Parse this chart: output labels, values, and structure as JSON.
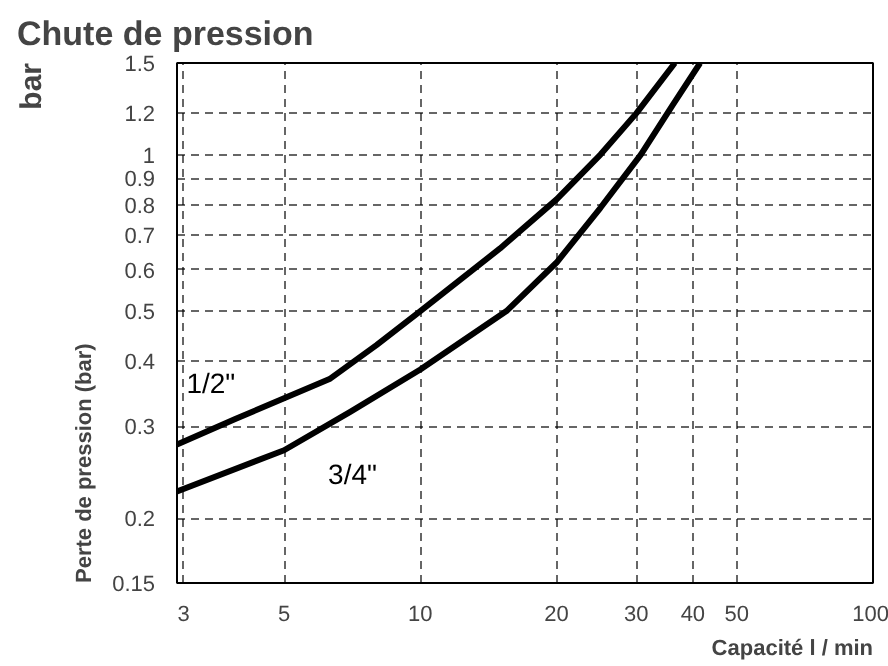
{
  "chart_data": {
    "type": "line",
    "title": "Chute de pression",
    "xlabel": "Capacité l / min",
    "ylabel": "Perte de pression (bar)",
    "annotations": [
      "bar"
    ],
    "log": "xy",
    "grid": true,
    "legend": false,
    "xlim": [
      2.9,
      100
    ],
    "xticks": [
      3,
      5,
      10,
      20,
      30,
      40,
      50,
      100
    ],
    "ylim": [
      0.15,
      1.5
    ],
    "yticks": [
      0.15,
      0.2,
      0.3,
      0.4,
      0.5,
      0.6,
      0.7,
      0.8,
      0.9,
      1,
      1.2,
      1.5
    ],
    "series": [
      {
        "name": "1/2\"",
        "color": "#000000",
        "x": [
          2.9,
          3.9,
          5,
          6.3,
          8,
          10,
          15,
          20,
          25,
          30,
          36.5
        ],
        "values": [
          0.277,
          0.31,
          0.34,
          0.37,
          0.43,
          0.5,
          0.66,
          0.82,
          1.0,
          1.2,
          1.5
        ]
      },
      {
        "name": "3/4\"",
        "color": "#000000",
        "x": [
          2.9,
          5,
          7,
          10,
          15.5,
          20,
          25,
          30.7,
          36,
          41.5
        ],
        "values": [
          0.225,
          0.27,
          0.32,
          0.386,
          0.5,
          0.62,
          0.79,
          1.0,
          1.24,
          1.5
        ]
      }
    ]
  }
}
